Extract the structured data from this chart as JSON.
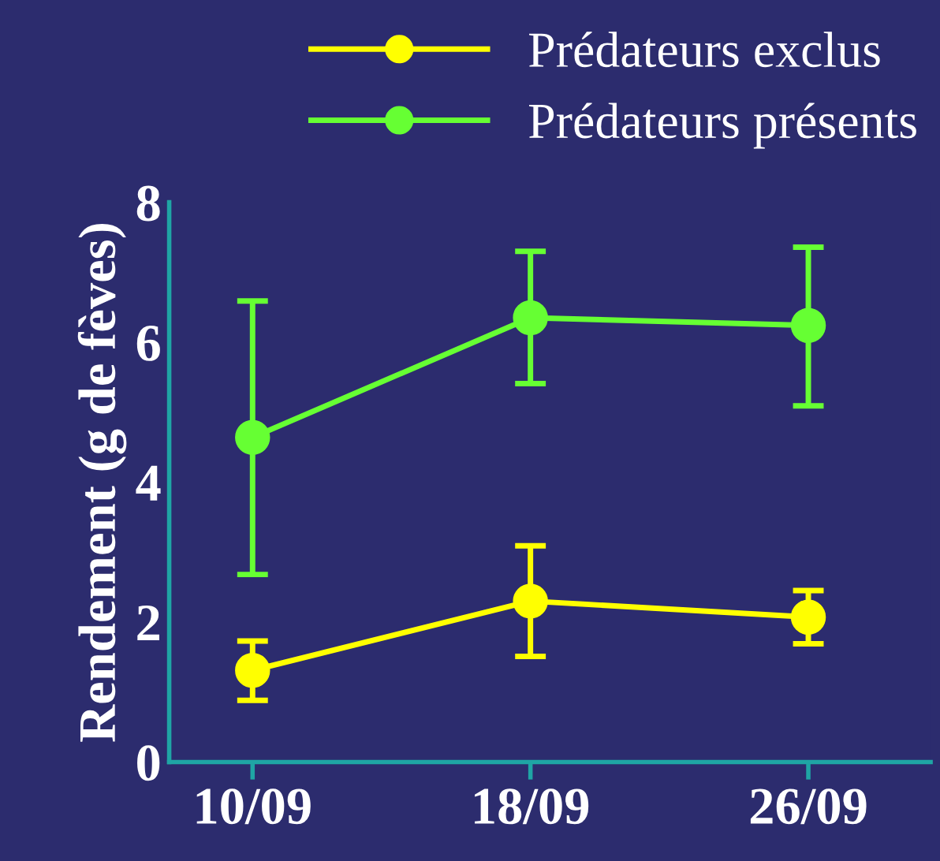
{
  "chart_data": {
    "type": "line",
    "ylabel": "Rendement (g de fèves)",
    "categories": [
      "10/09",
      "18/09",
      "26/09"
    ],
    "series": [
      {
        "name": "Prédateurs exclus",
        "color": "#ffff00",
        "values": [
          1.31,
          2.3,
          2.07
        ],
        "errors": [
          [
            0.88,
            1.73
          ],
          [
            1.51,
            3.09
          ],
          [
            1.69,
            2.45
          ]
        ]
      },
      {
        "name": "Prédateurs présents",
        "color": "#66ff33",
        "values": [
          4.64,
          6.35,
          6.24
        ],
        "errors": [
          [
            2.68,
            6.59
          ],
          [
            5.41,
            7.3
          ],
          [
            5.09,
            7.36
          ]
        ]
      }
    ],
    "ylim": [
      0,
      8
    ],
    "yticks": [
      0,
      2,
      4,
      6,
      8
    ],
    "marker": "circle",
    "line_style": "solid",
    "legend": "top right",
    "grid": false
  }
}
